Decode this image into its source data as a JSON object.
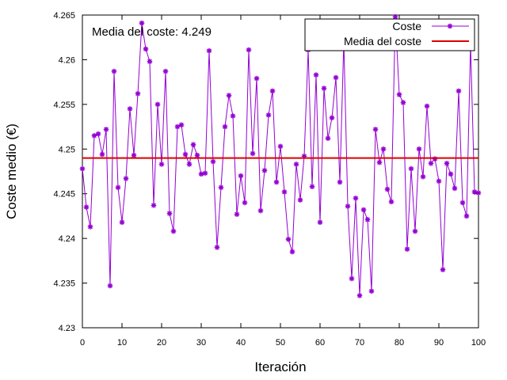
{
  "chart_data": {
    "type": "line",
    "annotation": "Media del coste: 4.249",
    "xlabel": "Iteración",
    "ylabel": "Coste medio (€)",
    "xlim": [
      0,
      100
    ],
    "ylim": [
      4.23,
      4.265
    ],
    "x_ticks": [
      "0",
      "10",
      "20",
      "30",
      "40",
      "50",
      "60",
      "70",
      "80",
      "90",
      "100"
    ],
    "y_ticks": [
      "4.23",
      "4.235",
      "4.24",
      "4.245",
      "4.25",
      "4.255",
      "4.26",
      "4.265"
    ],
    "grid": false,
    "legend_position": "top-right",
    "series": [
      {
        "name": "Coste",
        "color": "#9400d3",
        "marker": "asterisk",
        "x": [
          0,
          1,
          2,
          3,
          4,
          5,
          6,
          7,
          8,
          9,
          10,
          11,
          12,
          13,
          14,
          15,
          16,
          17,
          18,
          19,
          20,
          21,
          22,
          23,
          24,
          25,
          26,
          27,
          28,
          29,
          30,
          31,
          32,
          33,
          34,
          35,
          36,
          37,
          38,
          39,
          40,
          41,
          42,
          43,
          44,
          45,
          46,
          47,
          48,
          49,
          50,
          51,
          52,
          53,
          54,
          55,
          56,
          57,
          58,
          59,
          60,
          61,
          62,
          63,
          64,
          65,
          66,
          67,
          68,
          69,
          70,
          71,
          72,
          73,
          74,
          75,
          76,
          77,
          78,
          79,
          80,
          81,
          82,
          83,
          84,
          85,
          86,
          87,
          88,
          89,
          90,
          91,
          92,
          93,
          94,
          95,
          96,
          97,
          98,
          99,
          100
        ],
        "y": [
          4.2478,
          4.2435,
          4.2413,
          4.2515,
          4.2517,
          4.2494,
          4.2522,
          4.2347,
          4.2587,
          4.2457,
          4.2418,
          4.2467,
          4.2545,
          4.2493,
          4.2562,
          4.2641,
          4.2612,
          4.2598,
          4.2437,
          4.255,
          4.2483,
          4.2587,
          4.2428,
          4.2408,
          4.2525,
          4.2527,
          4.2494,
          4.2483,
          4.2505,
          4.2493,
          4.2472,
          4.2473,
          4.261,
          4.2486,
          4.239,
          4.2457,
          4.2525,
          4.256,
          4.2537,
          4.2427,
          4.247,
          4.244,
          4.2611,
          4.2495,
          4.2579,
          4.2431,
          4.2476,
          4.2538,
          4.2565,
          4.2463,
          4.2503,
          4.2452,
          4.2399,
          4.2385,
          4.2483,
          4.2443,
          4.2492,
          4.2611,
          4.2458,
          4.2583,
          4.2418,
          4.2568,
          4.2512,
          4.2535,
          4.258,
          4.2463,
          4.2621,
          4.2436,
          4.2355,
          4.2445,
          4.2336,
          4.2432,
          4.2421,
          4.2341,
          4.2522,
          4.2485,
          4.25,
          4.2455,
          4.2441,
          4.2648,
          4.2561,
          4.2552,
          4.2388,
          4.2478,
          4.2408,
          4.25,
          4.2469,
          4.2548,
          4.2484,
          4.2489,
          4.2464,
          4.2365,
          4.2484,
          4.2472,
          4.2456,
          4.2565,
          4.244,
          4.2425,
          4.2618,
          4.2452,
          4.2451
        ]
      },
      {
        "name": "Media del coste",
        "color": "#dd0000",
        "marker": "none",
        "x": [
          0,
          100
        ],
        "y": [
          4.249,
          4.249
        ]
      }
    ]
  }
}
